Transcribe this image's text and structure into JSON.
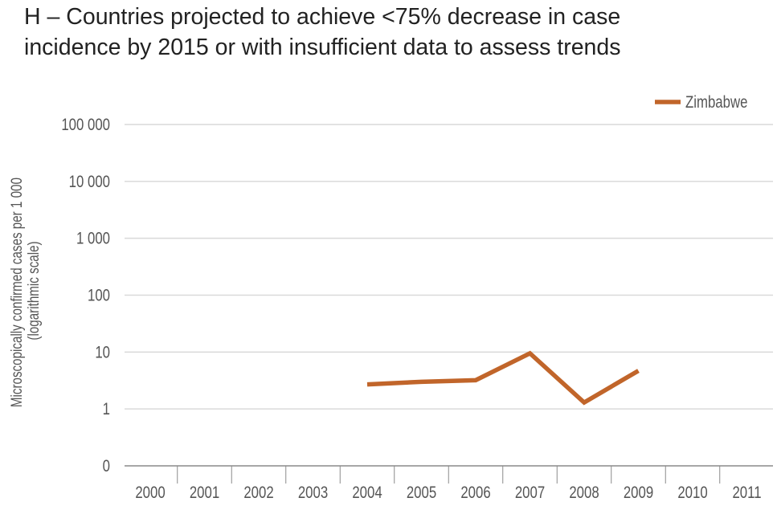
{
  "title": {
    "line1": "H – Countries projected to achieve <75% decrease in case",
    "line2": "incidence by 2015 or with insufficient data to assess trends"
  },
  "chart_data": {
    "type": "line",
    "ylabel_line1": "Microscopically confirmed cases per 1 000",
    "ylabel_line2": "(logarithmic scale)",
    "y_scale": "log",
    "y_ticks": [
      "0",
      "1",
      "10",
      "100",
      "1 000",
      "10 000",
      "100 000"
    ],
    "y_tick_values": [
      0.1,
      1,
      10,
      100,
      1000,
      10000,
      100000
    ],
    "x_ticks": [
      "2000",
      "2001",
      "2002",
      "2003",
      "2004",
      "2005",
      "2006",
      "2007",
      "2008",
      "2009",
      "2010",
      "2011"
    ],
    "grid": true,
    "legend_position": "top-right",
    "series": [
      {
        "name": "Zimbabwe",
        "color": "#C1652A",
        "x": [
          2004,
          2005,
          2006,
          2007,
          2008,
          2009
        ],
        "values": [
          2.7,
          3.0,
          3.2,
          9.5,
          1.3,
          4.7
        ]
      }
    ]
  }
}
